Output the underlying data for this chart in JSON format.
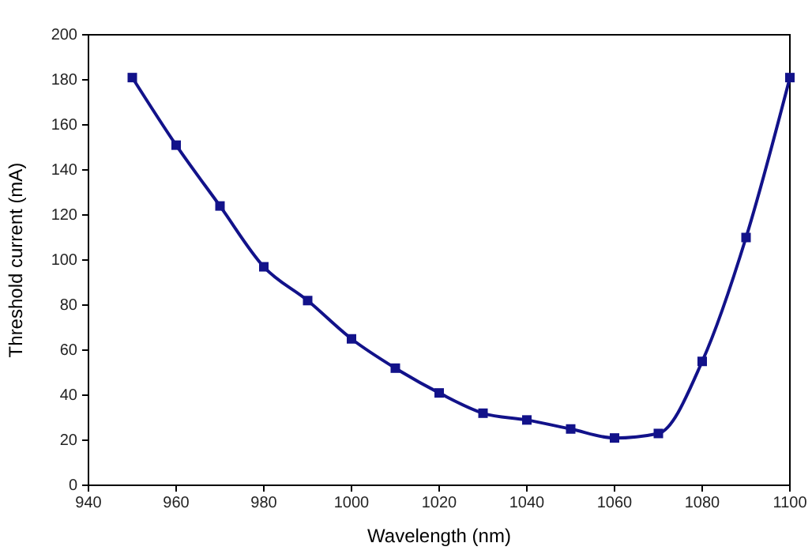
{
  "chart_data": {
    "type": "line",
    "xlabel": "Wavelength (nm)",
    "ylabel": "Threshold current (mA)",
    "x": [
      950,
      960,
      970,
      980,
      990,
      1000,
      1010,
      1020,
      1030,
      1040,
      1050,
      1060,
      1070,
      1080,
      1090,
      1100
    ],
    "series": [
      {
        "color": "#12128a",
        "values": [
          181,
          151,
          124,
          97,
          82,
          65,
          52,
          41,
          32,
          29,
          25,
          21,
          23,
          55,
          110,
          181
        ]
      }
    ],
    "xlim": [
      940,
      1100
    ],
    "xticks": [
      940,
      960,
      980,
      1000,
      1020,
      1040,
      1060,
      1080,
      1100
    ],
    "ylim": [
      0,
      200
    ],
    "yticks": [
      0,
      20,
      40,
      60,
      80,
      100,
      120,
      140,
      160,
      180,
      200
    ],
    "marker": "square",
    "line_style": "solid",
    "grid": false
  }
}
